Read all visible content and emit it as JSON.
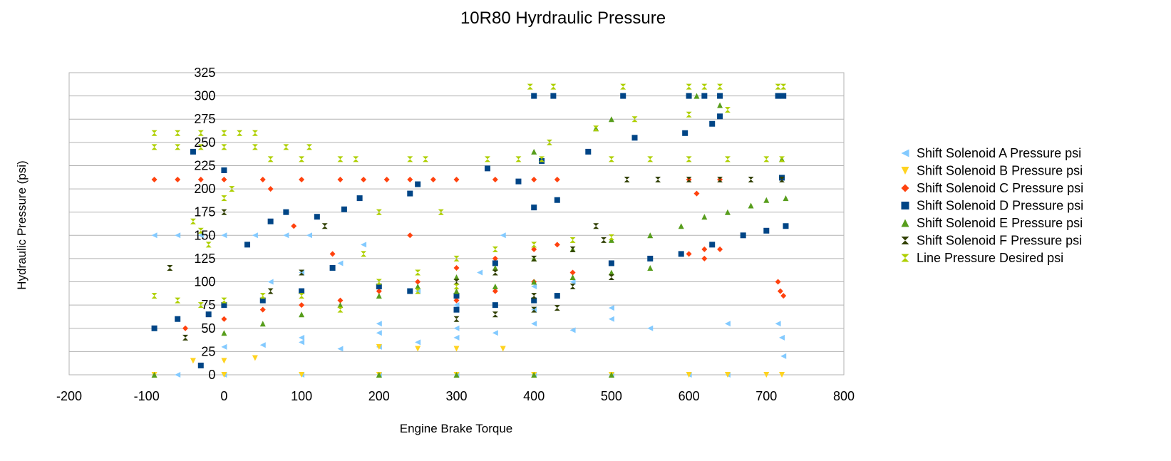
{
  "chart_data": {
    "type": "scatter",
    "title": "10R80 Hyrdraulic Pressure",
    "xlabel": "Engine Brake Torque",
    "ylabel": "Hydraulic Pressure (psi)",
    "xlim": [
      -200,
      800
    ],
    "ylim": [
      0,
      325
    ],
    "x_ticks": [
      -200,
      -100,
      0,
      100,
      200,
      300,
      400,
      500,
      600,
      700,
      800
    ],
    "y_ticks": [
      0,
      25,
      50,
      75,
      100,
      125,
      150,
      175,
      200,
      225,
      250,
      275,
      300,
      325
    ],
    "grid": "horizontal",
    "legend_position": "right",
    "series": [
      {
        "name": "Shift Solenoid A Pressure psi",
        "marker": "triangle-left",
        "color": "#83caff",
        "points": [
          [
            -90,
            150
          ],
          [
            -60,
            150
          ],
          [
            -30,
            150
          ],
          [
            0,
            150
          ],
          [
            40,
            150
          ],
          [
            80,
            150
          ],
          [
            110,
            150
          ],
          [
            -60,
            0
          ],
          [
            0,
            0
          ],
          [
            100,
            0
          ],
          [
            200,
            0
          ],
          [
            300,
            0
          ],
          [
            400,
            0
          ],
          [
            500,
            0
          ],
          [
            600,
            0
          ],
          [
            650,
            0
          ],
          [
            0,
            30
          ],
          [
            50,
            32
          ],
          [
            100,
            35
          ],
          [
            150,
            28
          ],
          [
            200,
            30
          ],
          [
            250,
            35
          ],
          [
            300,
            40
          ],
          [
            100,
            40
          ],
          [
            200,
            45
          ],
          [
            300,
            50
          ],
          [
            400,
            55
          ],
          [
            500,
            60
          ],
          [
            200,
            55
          ],
          [
            300,
            75
          ],
          [
            400,
            95
          ],
          [
            450,
            100
          ],
          [
            250,
            90
          ],
          [
            330,
            110
          ],
          [
            360,
            150
          ],
          [
            350,
            45
          ],
          [
            450,
            48
          ],
          [
            550,
            50
          ],
          [
            650,
            55
          ],
          [
            715,
            55
          ],
          [
            720,
            40
          ],
          [
            722,
            20
          ],
          [
            400,
            70
          ],
          [
            500,
            72
          ],
          [
            180,
            140
          ],
          [
            150,
            120
          ],
          [
            100,
            110
          ],
          [
            60,
            100
          ]
        ]
      },
      {
        "name": "Shift Solenoid B Pressure psi",
        "marker": "triangle-down",
        "color": "#ffd320",
        "points": [
          [
            -90,
            0
          ],
          [
            0,
            0
          ],
          [
            100,
            0
          ],
          [
            200,
            0
          ],
          [
            300,
            0
          ],
          [
            400,
            0
          ],
          [
            500,
            0
          ],
          [
            600,
            0
          ],
          [
            650,
            0
          ],
          [
            700,
            0
          ],
          [
            720,
            0
          ],
          [
            -40,
            15
          ],
          [
            0,
            15
          ],
          [
            40,
            18
          ],
          [
            200,
            30
          ],
          [
            250,
            28
          ],
          [
            300,
            28
          ],
          [
            360,
            28
          ]
        ]
      },
      {
        "name": "Shift Solenoid C Pressure psi",
        "marker": "diamond",
        "color": "#ff420e",
        "points": [
          [
            -90,
            210
          ],
          [
            -60,
            210
          ],
          [
            -30,
            210
          ],
          [
            0,
            210
          ],
          [
            50,
            210
          ],
          [
            100,
            210
          ],
          [
            150,
            210
          ],
          [
            180,
            210
          ],
          [
            210,
            210
          ],
          [
            240,
            210
          ],
          [
            270,
            210
          ],
          [
            300,
            210
          ],
          [
            350,
            210
          ],
          [
            400,
            210
          ],
          [
            430,
            210
          ],
          [
            600,
            210
          ],
          [
            640,
            210
          ],
          [
            610,
            195
          ],
          [
            -50,
            50
          ],
          [
            0,
            60
          ],
          [
            50,
            70
          ],
          [
            100,
            75
          ],
          [
            140,
            130
          ],
          [
            150,
            80
          ],
          [
            200,
            90
          ],
          [
            250,
            100
          ],
          [
            300,
            115
          ],
          [
            350,
            125
          ],
          [
            400,
            135
          ],
          [
            430,
            140
          ],
          [
            300,
            80
          ],
          [
            350,
            90
          ],
          [
            400,
            100
          ],
          [
            450,
            110
          ],
          [
            500,
            120
          ],
          [
            600,
            130
          ],
          [
            620,
            135
          ],
          [
            640,
            135
          ],
          [
            620,
            125
          ],
          [
            715,
            100
          ],
          [
            718,
            90
          ],
          [
            722,
            85
          ],
          [
            60,
            200
          ],
          [
            90,
            160
          ],
          [
            240,
            150
          ]
        ]
      },
      {
        "name": "Shift Solenoid D Pressure psi",
        "marker": "square",
        "color": "#004586",
        "points": [
          [
            400,
            300
          ],
          [
            425,
            300
          ],
          [
            515,
            300
          ],
          [
            600,
            300
          ],
          [
            620,
            300
          ],
          [
            640,
            300
          ],
          [
            715,
            300
          ],
          [
            722,
            300
          ],
          [
            -40,
            240
          ],
          [
            0,
            220
          ],
          [
            30,
            140
          ],
          [
            60,
            165
          ],
          [
            80,
            175
          ],
          [
            120,
            170
          ],
          [
            155,
            178
          ],
          [
            175,
            190
          ],
          [
            240,
            195
          ],
          [
            250,
            205
          ],
          [
            340,
            222
          ],
          [
            380,
            208
          ],
          [
            410,
            230
          ],
          [
            470,
            240
          ],
          [
            530,
            255
          ],
          [
            595,
            260
          ],
          [
            630,
            270
          ],
          [
            640,
            278
          ],
          [
            -90,
            50
          ],
          [
            -60,
            60
          ],
          [
            -20,
            65
          ],
          [
            0,
            75
          ],
          [
            50,
            80
          ],
          [
            100,
            90
          ],
          [
            140,
            115
          ],
          [
            200,
            95
          ],
          [
            240,
            90
          ],
          [
            300,
            85
          ],
          [
            350,
            120
          ],
          [
            400,
            180
          ],
          [
            430,
            188
          ],
          [
            300,
            70
          ],
          [
            350,
            75
          ],
          [
            400,
            80
          ],
          [
            430,
            85
          ],
          [
            500,
            120
          ],
          [
            550,
            125
          ],
          [
            590,
            130
          ],
          [
            630,
            140
          ],
          [
            670,
            150
          ],
          [
            700,
            155
          ],
          [
            725,
            160
          ],
          [
            720,
            212
          ],
          [
            -30,
            10
          ]
        ]
      },
      {
        "name": "Shift Solenoid E Pressure psi",
        "marker": "triangle-up",
        "color": "#579d1c",
        "points": [
          [
            -90,
            0
          ],
          [
            200,
            0
          ],
          [
            300,
            0
          ],
          [
            400,
            0
          ],
          [
            500,
            0
          ],
          [
            0,
            45
          ],
          [
            50,
            55
          ],
          [
            100,
            65
          ],
          [
            150,
            75
          ],
          [
            200,
            85
          ],
          [
            250,
            95
          ],
          [
            300,
            105
          ],
          [
            350,
            115
          ],
          [
            400,
            125
          ],
          [
            450,
            135
          ],
          [
            500,
            145
          ],
          [
            550,
            150
          ],
          [
            300,
            90
          ],
          [
            350,
            95
          ],
          [
            400,
            100
          ],
          [
            450,
            105
          ],
          [
            500,
            110
          ],
          [
            550,
            115
          ],
          [
            590,
            160
          ],
          [
            620,
            170
          ],
          [
            650,
            175
          ],
          [
            680,
            182
          ],
          [
            700,
            188
          ],
          [
            725,
            190
          ],
          [
            400,
            240
          ],
          [
            480,
            265
          ],
          [
            500,
            275
          ],
          [
            610,
            300
          ],
          [
            640,
            290
          ],
          [
            720,
            232
          ]
        ]
      },
      {
        "name": "Shift Solenoid F Pressure psi",
        "marker": "bowtie",
        "color": "#314004",
        "points": [
          [
            -70,
            115
          ],
          [
            -50,
            40
          ],
          [
            0,
            175
          ],
          [
            60,
            90
          ],
          [
            100,
            110
          ],
          [
            130,
            160
          ],
          [
            520,
            210
          ],
          [
            560,
            210
          ],
          [
            600,
            210
          ],
          [
            640,
            210
          ],
          [
            680,
            210
          ],
          [
            720,
            210
          ],
          [
            300,
            100
          ],
          [
            350,
            110
          ],
          [
            400,
            125
          ],
          [
            450,
            135
          ],
          [
            490,
            145
          ],
          [
            300,
            60
          ],
          [
            350,
            65
          ],
          [
            400,
            70
          ],
          [
            430,
            72
          ],
          [
            400,
            85
          ],
          [
            450,
            95
          ],
          [
            500,
            105
          ],
          [
            480,
            160
          ]
        ]
      },
      {
        "name": "Line Pressure Desired psi",
        "marker": "hourglass",
        "color": "#aecf00",
        "points": [
          [
            -90,
            260
          ],
          [
            -60,
            260
          ],
          [
            -30,
            260
          ],
          [
            0,
            260
          ],
          [
            20,
            260
          ],
          [
            40,
            260
          ],
          [
            -90,
            245
          ],
          [
            -60,
            245
          ],
          [
            -30,
            245
          ],
          [
            0,
            245
          ],
          [
            40,
            245
          ],
          [
            80,
            245
          ],
          [
            110,
            245
          ],
          [
            -40,
            165
          ],
          [
            -30,
            155
          ],
          [
            -20,
            140
          ],
          [
            -90,
            85
          ],
          [
            -60,
            80
          ],
          [
            -30,
            75
          ],
          [
            0,
            80
          ],
          [
            50,
            85
          ],
          [
            100,
            85
          ],
          [
            60,
            232
          ],
          [
            100,
            232
          ],
          [
            150,
            232
          ],
          [
            170,
            232
          ],
          [
            240,
            232
          ],
          [
            260,
            232
          ],
          [
            340,
            232
          ],
          [
            380,
            232
          ],
          [
            410,
            232
          ],
          [
            500,
            232
          ],
          [
            550,
            232
          ],
          [
            600,
            232
          ],
          [
            650,
            232
          ],
          [
            700,
            232
          ],
          [
            720,
            232
          ],
          [
            395,
            310
          ],
          [
            425,
            310
          ],
          [
            515,
            310
          ],
          [
            600,
            310
          ],
          [
            620,
            310
          ],
          [
            640,
            310
          ],
          [
            715,
            310
          ],
          [
            722,
            310
          ],
          [
            480,
            265
          ],
          [
            530,
            275
          ],
          [
            600,
            280
          ],
          [
            650,
            285
          ],
          [
            420,
            250
          ],
          [
            200,
            100
          ],
          [
            250,
            110
          ],
          [
            300,
            125
          ],
          [
            350,
            135
          ],
          [
            400,
            140
          ],
          [
            450,
            145
          ],
          [
            500,
            148
          ],
          [
            150,
            70
          ],
          [
            250,
            90
          ],
          [
            300,
            95
          ],
          [
            280,
            175
          ],
          [
            180,
            130
          ],
          [
            200,
            175
          ],
          [
            10,
            200
          ],
          [
            0,
            190
          ]
        ]
      }
    ]
  }
}
